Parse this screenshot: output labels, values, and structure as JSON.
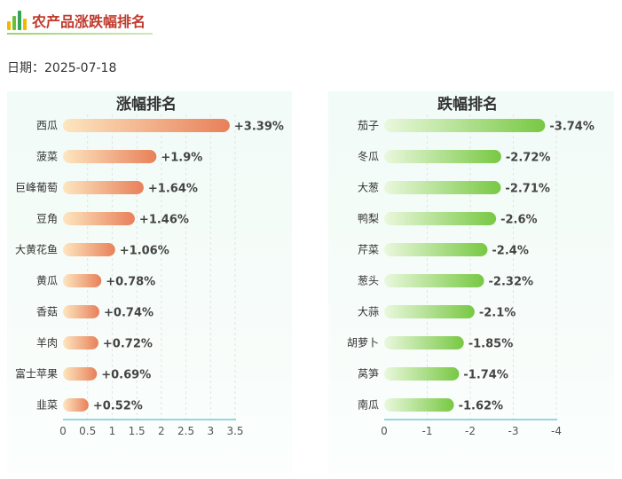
{
  "header": {
    "title": "农产品涨跌幅排名",
    "logo_icon": "bar-chart-icon",
    "logo_colors": [
      "#f5b800",
      "#6cbf3a",
      "#2fa84f"
    ],
    "title_color": "#c0392b"
  },
  "date": {
    "label": "日期：",
    "value": "2025-07-18"
  },
  "chart_data": [
    {
      "type": "bar",
      "orientation": "horizontal",
      "title": "涨幅排名",
      "categories": [
        "西瓜",
        "菠菜",
        "巨峰葡萄",
        "豆角",
        "大黄花鱼",
        "黄瓜",
        "香菇",
        "羊肉",
        "富士苹果",
        "韭菜"
      ],
      "values": [
        3.39,
        1.9,
        1.64,
        1.46,
        1.06,
        0.78,
        0.74,
        0.72,
        0.69,
        0.52
      ],
      "value_labels": [
        "+3.39%",
        "+1.9%",
        "+1.64%",
        "+1.46%",
        "+1.06%",
        "+0.78%",
        "+0.74%",
        "+0.72%",
        "+0.69%",
        "+0.52%"
      ],
      "xlim": [
        0,
        3.5
      ],
      "xticks": [
        0,
        0.5,
        1,
        1.5,
        2,
        2.5,
        3,
        3.5
      ],
      "xtick_labels": [
        "0",
        "0.5",
        "1",
        "1.5",
        "2",
        "2.5",
        "3",
        "3.5"
      ],
      "xlabel": "",
      "ylabel": "",
      "grid": "vertical dashed",
      "bar_gradient": [
        "#fde6bf",
        "#e8805a"
      ],
      "axis_color": "#5bbfd0"
    },
    {
      "type": "bar",
      "orientation": "horizontal",
      "title": "跌幅排名",
      "categories": [
        "茄子",
        "冬瓜",
        "大葱",
        "鸭梨",
        "芹菜",
        "葱头",
        "大蒜",
        "胡萝卜",
        "莴笋",
        "南瓜"
      ],
      "values": [
        -3.74,
        -2.72,
        -2.71,
        -2.6,
        -2.4,
        -2.32,
        -2.1,
        -1.85,
        -1.74,
        -1.62
      ],
      "value_labels": [
        "-3.74%",
        "-2.72%",
        "-2.71%",
        "-2.6%",
        "-2.4%",
        "-2.32%",
        "-2.1%",
        "-1.85%",
        "-1.74%",
        "-1.62%"
      ],
      "xlim": [
        0,
        -4
      ],
      "xticks": [
        0,
        -1,
        -2,
        -3,
        -4
      ],
      "xtick_labels": [
        "0",
        "-1",
        "-2",
        "-3",
        "-4"
      ],
      "xlabel": "",
      "ylabel": "",
      "grid": "vertical dashed",
      "bar_gradient": [
        "#eaf8dd",
        "#78c843"
      ],
      "axis_color": "#5bbfd0"
    }
  ]
}
